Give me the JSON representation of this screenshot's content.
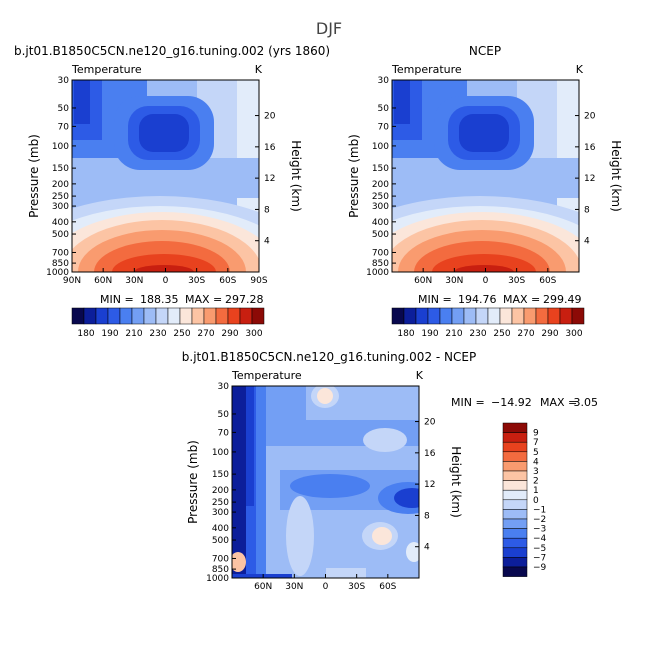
{
  "figure_title": "DJF",
  "chart_data": [
    {
      "type": "heatmap",
      "title": "b.jt01.B1850C5CN.ne120_g16.tuning.002 (yrs 1860)",
      "subtitle": "Temperature",
      "unit": "K",
      "ylabel": "Pressure (mb)",
      "ylabel_right": "Height (km)",
      "x_ticks": [
        "90N",
        "60N",
        "30N",
        "0",
        "30S",
        "60S",
        "90S"
      ],
      "y_ticks": [
        "30",
        "50",
        "70",
        "100",
        "150",
        "200",
        "250",
        "300",
        "400",
        "500",
        "700",
        "850",
        "1000"
      ],
      "y_right_ticks": [
        "20",
        "16",
        "12",
        "8",
        "4"
      ],
      "stats": {
        "min_label": "MIN =",
        "min": "188.35",
        "max_label": "MAX =",
        "max": "297.28"
      },
      "colorbar": {
        "orientation": "horizontal",
        "labels": [
          "180",
          "190",
          "210",
          "230",
          "250",
          "270",
          "290",
          "300"
        ]
      }
    },
    {
      "type": "heatmap",
      "title": "NCEP",
      "subtitle": "Temperature",
      "unit": "K",
      "ylabel": "Pressure (mb)",
      "ylabel_right": "Height (km)",
      "x_ticks": [
        "60N",
        "30N",
        "0",
        "30S",
        "60S"
      ],
      "y_ticks": [
        "30",
        "50",
        "70",
        "100",
        "150",
        "200",
        "250",
        "300",
        "400",
        "500",
        "700",
        "850",
        "1000"
      ],
      "y_right_ticks": [
        "20",
        "16",
        "12",
        "8",
        "4"
      ],
      "stats": {
        "min_label": "MIN =",
        "min": "194.76",
        "max_label": "MAX =",
        "max": "299.49"
      },
      "colorbar": {
        "orientation": "horizontal",
        "labels": [
          "180",
          "190",
          "210",
          "230",
          "250",
          "270",
          "290",
          "300"
        ]
      }
    },
    {
      "type": "heatmap",
      "title": "b.jt01.B1850C5CN.ne120_g16.tuning.002 - NCEP",
      "subtitle": "Temperature",
      "unit": "K",
      "ylabel": "Pressure (mb)",
      "ylabel_right": "Height (km)",
      "x_ticks": [
        "60N",
        "30N",
        "0",
        "30S",
        "60S"
      ],
      "y_ticks": [
        "30",
        "50",
        "70",
        "100",
        "150",
        "200",
        "250",
        "300",
        "400",
        "500",
        "700",
        "850",
        "1000"
      ],
      "y_right_ticks": [
        "20",
        "16",
        "12",
        "8",
        "4"
      ],
      "stats": {
        "min_label": "MIN =",
        "min": "−14.92",
        "max_label": "MAX =",
        "max": "3.05"
      },
      "colorbar": {
        "orientation": "vertical",
        "labels": [
          "9",
          "7",
          "5",
          "4",
          "3",
          "2",
          "1",
          "0",
          "−1",
          "−2",
          "−3",
          "−4",
          "−5",
          "−7",
          "−9"
        ]
      }
    }
  ],
  "colors": {
    "temp_scale": [
      "#08084e",
      "#0c1e9a",
      "#1a3fd0",
      "#2d5be6",
      "#4a7ff0",
      "#739ff4",
      "#9dbcf6",
      "#c4d6f8",
      "#e2ecfa",
      "#fbe6da",
      "#fcc4a4",
      "#f99b6f",
      "#f36b3f",
      "#e8421e",
      "#c81f10",
      "#8c0a06"
    ],
    "diff_scale": [
      "#8c0a06",
      "#c81f10",
      "#e8421e",
      "#f36b3f",
      "#f99b6f",
      "#fcc4a4",
      "#fbe6da",
      "#e2ecfa",
      "#c4d6f8",
      "#9dbcf6",
      "#739ff4",
      "#4a7ff0",
      "#2d5be6",
      "#1a3fd0",
      "#0c1e9a",
      "#08084e"
    ]
  }
}
